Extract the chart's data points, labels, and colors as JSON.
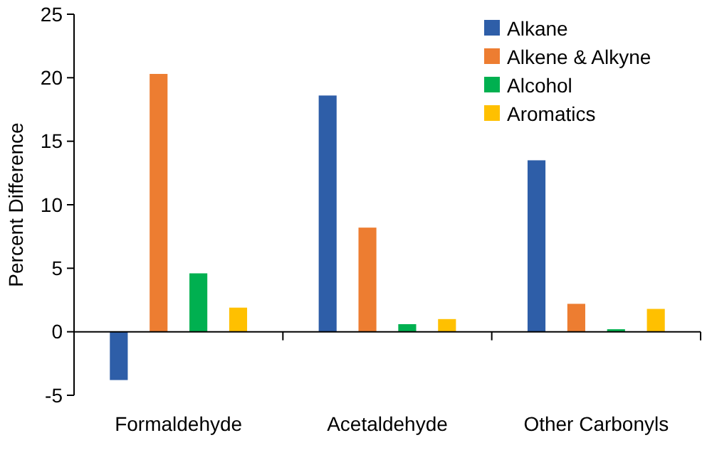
{
  "chart_data": {
    "type": "bar",
    "ylabel": "Percent Difference",
    "categories": [
      "Formaldehyde",
      "Acetaldehyde",
      "Other Carbonyls"
    ],
    "series": [
      {
        "name": "Alkane",
        "color": "#2e5ea8",
        "values": [
          -3.8,
          18.6,
          13.5
        ]
      },
      {
        "name": "Alkene & Alkyne",
        "color": "#ed7d31",
        "values": [
          20.3,
          8.2,
          2.2
        ]
      },
      {
        "name": "Alcohol",
        "color": "#00b050",
        "values": [
          4.6,
          0.6,
          0.2
        ]
      },
      {
        "name": "Aromatics",
        "color": "#ffc000",
        "values": [
          1.9,
          1.0,
          1.8
        ]
      }
    ],
    "ylim": [
      -5,
      25
    ],
    "yticks": [
      {
        "value": -5,
        "label": "-5"
      },
      0,
      5,
      10,
      15,
      20,
      25
    ],
    "legend": "top right"
  }
}
